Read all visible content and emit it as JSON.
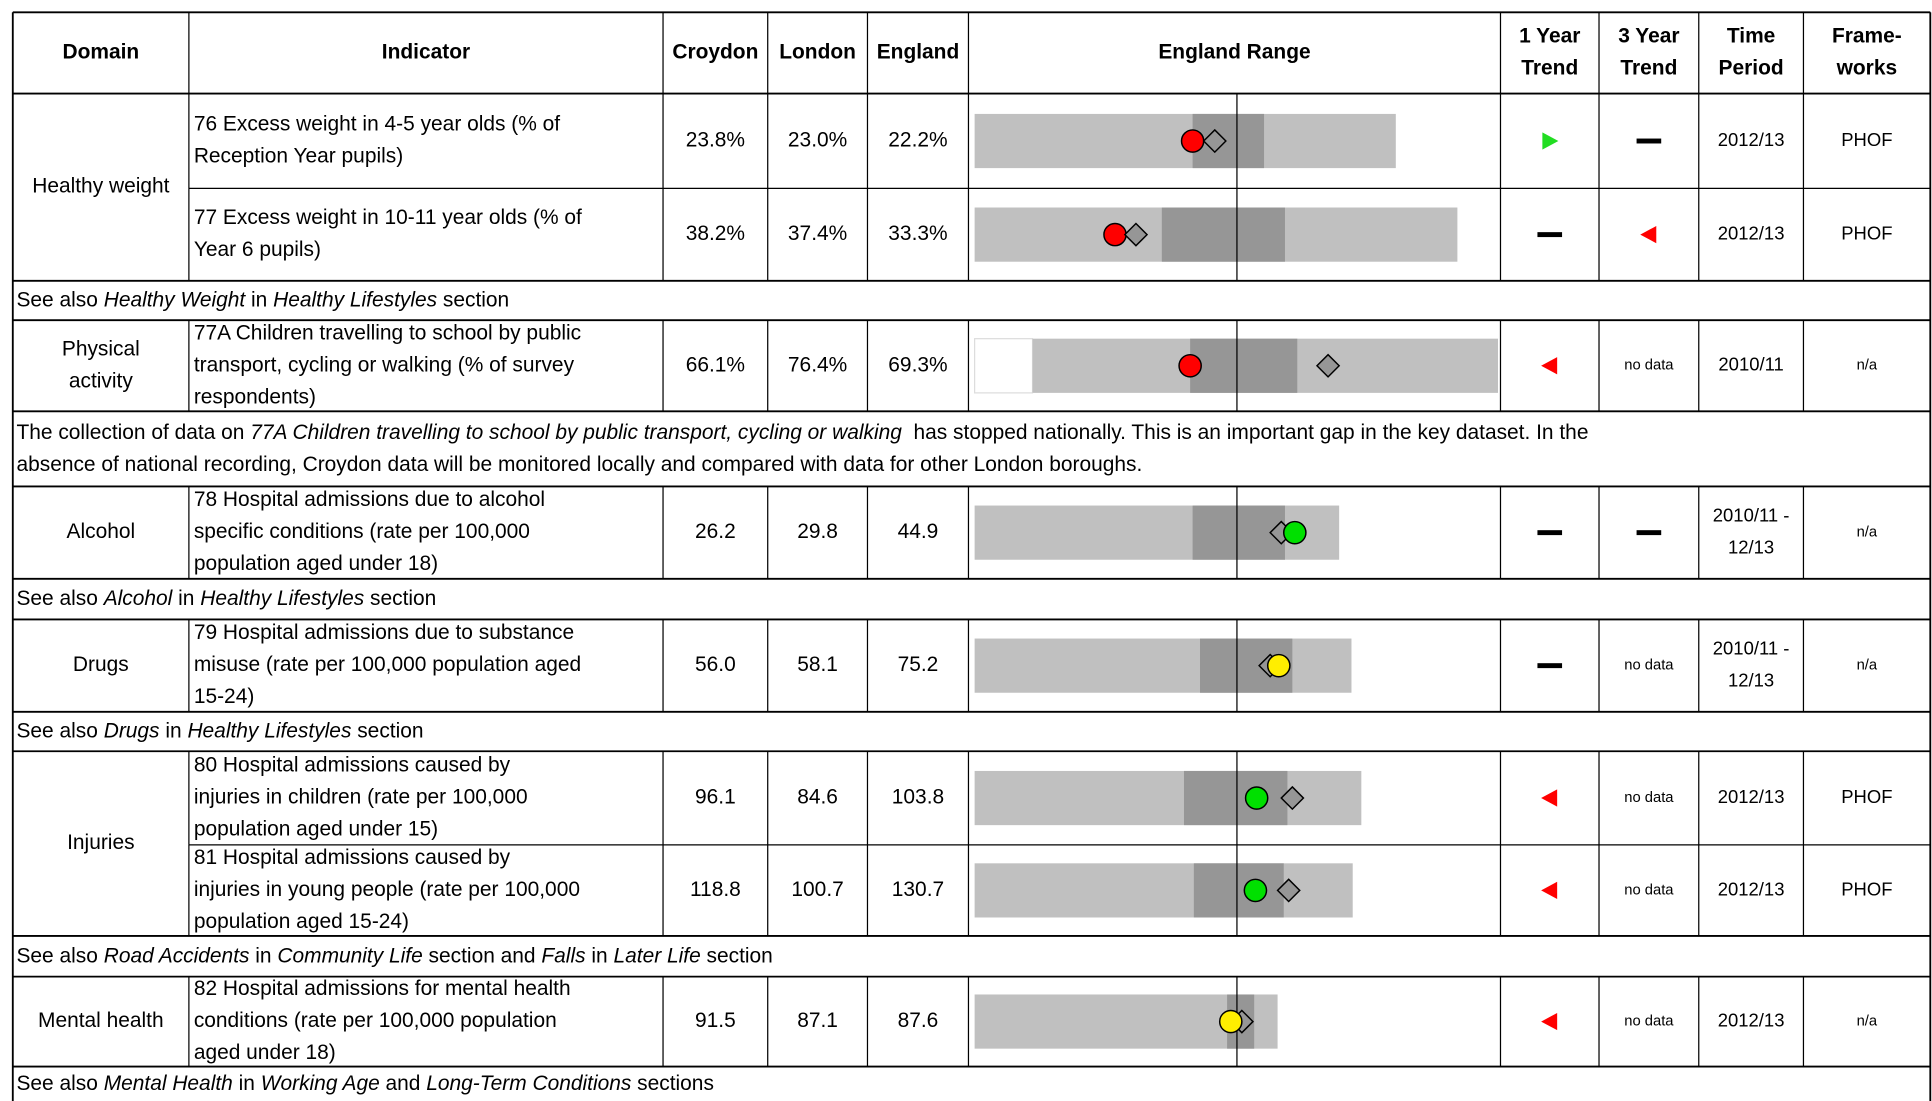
{
  "header": [
    [
      "Domain"
    ],
    [
      "Indicator"
    ],
    [
      "Croydon"
    ],
    [
      "London"
    ],
    [
      "England"
    ],
    [
      "England Range"
    ],
    [
      "1 Year",
      "Trend"
    ],
    [
      "3 Year",
      "Trend"
    ],
    [
      "Time",
      "Period"
    ],
    [
      "Frame-",
      "works"
    ]
  ],
  "sections": [
    {
      "domain": [
        "Healthy weight"
      ],
      "indicators": [
        {
          "indicator": [
            "76 Excess weight in 4-5 year olds (% of",
            "Reception Year pupils)"
          ],
          "croydon": "23.8%",
          "london": "23.0%",
          "england": "22.2%",
          "time_period": [
            "2012/13"
          ],
          "frameworks": "PHOF"
        },
        {
          "indicator": [
            "77 Excess weight in 10-11 year olds (% of",
            "Year 6 pupils)"
          ],
          "croydon": "38.2%",
          "london": "37.4%",
          "england": "33.3%",
          "time_period": [
            "2012/13"
          ],
          "frameworks": "PHOF"
        }
      ],
      "note": [
        [
          {
            "text": "See also "
          },
          {
            "text": "Healthy Weight",
            "italic": true
          },
          {
            "text": " in "
          },
          {
            "text": "Healthy Lifestyles",
            "italic": true
          },
          {
            "text": " section"
          }
        ]
      ]
    },
    {
      "domain": [
        "Physical",
        "activity"
      ],
      "indicators": [
        {
          "indicator": [
            "77A Children travelling to school by public",
            "transport, cycling or walking (% of survey",
            "respondents)"
          ],
          "croydon": "66.1%",
          "london": "76.4%",
          "england": "69.3%",
          "trend_3y": "no data",
          "time_period": [
            "2010/11"
          ],
          "frameworks": "n/a"
        }
      ],
      "note": [
        [
          {
            "text": "The collection of data on "
          },
          {
            "text": "77A Children travelling to school by public transport, cycling or walking",
            "italic": true
          },
          {
            "text": "  has stopped nationally. This is an important gap in the key dataset. In the"
          }
        ],
        [
          {
            "text": "absence of national recording, Croydon data will be monitored locally and compared with data for other London boroughs."
          }
        ]
      ]
    },
    {
      "domain": [
        "Alcohol"
      ],
      "indicators": [
        {
          "indicator": [
            "78 Hospital admissions due to alcohol",
            "specific conditions (rate per 100,000",
            "population aged under 18)"
          ],
          "croydon": "26.2",
          "london": "29.8",
          "england": "44.9",
          "time_period": [
            "2010/11 -",
            "12/13"
          ],
          "frameworks": "n/a"
        }
      ],
      "note": [
        [
          {
            "text": "See also "
          },
          {
            "text": "Alcohol",
            "italic": true
          },
          {
            "text": " in "
          },
          {
            "text": "Healthy Lifestyles",
            "italic": true
          },
          {
            "text": " section"
          }
        ]
      ]
    },
    {
      "domain": [
        "Drugs"
      ],
      "indicators": [
        {
          "indicator": [
            "79 Hospital admissions due to substance",
            "misuse (rate per 100,000 population aged",
            "15-24)"
          ],
          "croydon": "56.0",
          "london": "58.1",
          "england": "75.2",
          "trend_3y": "no data",
          "time_period": [
            "2010/11 -",
            "12/13"
          ],
          "frameworks": "n/a"
        }
      ],
      "note": [
        [
          {
            "text": "See also "
          },
          {
            "text": "Drugs",
            "italic": true
          },
          {
            "text": " in "
          },
          {
            "text": "Healthy Lifestyles",
            "italic": true
          },
          {
            "text": " section"
          }
        ]
      ]
    },
    {
      "domain": [
        "Injuries"
      ],
      "indicators": [
        {
          "indicator": [
            "80 Hospital admissions caused by",
            "injuries in children (rate per 100,000",
            "population aged under 15)"
          ],
          "croydon": "96.1",
          "london": "84.6",
          "england": "103.8",
          "trend_3y": "no data",
          "time_period": [
            "2012/13"
          ],
          "frameworks": "PHOF"
        },
        {
          "indicator": [
            "81 Hospital admissions caused by",
            "injuries in young people (rate per 100,000",
            "population aged 15-24)"
          ],
          "croydon": "118.8",
          "london": "100.7",
          "england": "130.7",
          "trend_3y": "no data",
          "time_period": [
            "2012/13"
          ],
          "frameworks": "PHOF"
        }
      ],
      "note": [
        [
          {
            "text": "See also "
          },
          {
            "text": "Road Accidents",
            "italic": true
          },
          {
            "text": " in "
          },
          {
            "text": "Community Life",
            "italic": true
          },
          {
            "text": " section and "
          },
          {
            "text": "Falls",
            "italic": true
          },
          {
            "text": " in "
          },
          {
            "text": "Later Life",
            "italic": true
          },
          {
            "text": " section"
          }
        ]
      ]
    },
    {
      "domain": [
        "Mental health"
      ],
      "indicators": [
        {
          "indicator": [
            "82 Hospital admissions for mental health",
            "conditions (rate per 100,000 population",
            "aged under 18)"
          ],
          "croydon": "91.5",
          "london": "87.1",
          "england": "87.6",
          "trend_3y": "no data",
          "time_period": [
            "2012/13"
          ],
          "frameworks": "n/a"
        }
      ],
      "note": [
        [
          {
            "text": "See also "
          },
          {
            "text": "Mental Health",
            "italic": true
          },
          {
            "text": " in "
          },
          {
            "text": "Working Age",
            "italic": true
          },
          {
            "text": " and "
          },
          {
            "text": "Long-Term Conditions",
            "italic": true
          },
          {
            "text": " sections"
          }
        ]
      ]
    }
  ]
}
